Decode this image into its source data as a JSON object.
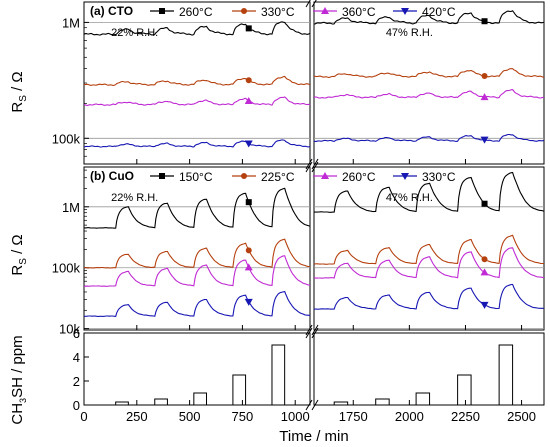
{
  "chart_data": [
    {
      "panel": "(a) CTO",
      "type": "line",
      "ylabel": "R_S / Ω",
      "yscale": "log",
      "ylim": [
        60000,
        1500000
      ],
      "yticks": [
        {
          "value": 100000,
          "label": "100k"
        },
        {
          "value": 1000000,
          "label": "1M"
        }
      ],
      "annotations": [
        {
          "text": "22% R.H.",
          "x": 240
        },
        {
          "text": "47% R.H.",
          "x": 2000
        }
      ],
      "series": [
        {
          "name": "260°C",
          "color": "#000000",
          "marker": "square",
          "base_dry": 790000,
          "base_wet": 985000,
          "response": 0.3,
          "noise": 0.018
        },
        {
          "name": "330°C",
          "color": "#b5410f",
          "marker": "circle",
          "base_dry": 290000,
          "base_wet": 340000,
          "response": 0.18,
          "noise": 0.015
        },
        {
          "name": "360°C",
          "color": "#c02ad4",
          "marker": "triangle-up",
          "base_dry": 195000,
          "base_wet": 225000,
          "response": 0.16,
          "noise": 0.015
        },
        {
          "name": "420°C",
          "color": "#1717b3",
          "marker": "triangle-down",
          "base_dry": 85000,
          "base_wet": 95000,
          "response": 0.14,
          "noise": 0.012
        }
      ]
    },
    {
      "panel": "(b) CuO",
      "type": "line",
      "ylabel": "R_S / Ω",
      "yscale": "log",
      "ylim": [
        9500,
        4500000
      ],
      "yticks": [
        {
          "value": 10000,
          "label": "10k"
        },
        {
          "value": 100000,
          "label": "100k"
        },
        {
          "value": 1000000,
          "label": "1M"
        }
      ],
      "annotations": [
        {
          "text": "22% R.H.",
          "x": 240
        },
        {
          "text": "47% R.H.",
          "x": 2000
        }
      ],
      "series": [
        {
          "name": "150°C",
          "color": "#000000",
          "marker": "square",
          "base_dry": 450000,
          "base_wet": 820000,
          "response": 3.6,
          "noise": 0.01
        },
        {
          "name": "225°C",
          "color": "#b5410f",
          "marker": "circle",
          "base_dry": 100000,
          "base_wet": 115000,
          "response": 2.0,
          "noise": 0.01
        },
        {
          "name": "260°C",
          "color": "#c02ad4",
          "marker": "triangle-up",
          "base_dry": 50000,
          "base_wet": 68000,
          "response": 2.2,
          "noise": 0.01
        },
        {
          "name": "330°C",
          "color": "#1717b3",
          "marker": "triangle-down",
          "base_dry": 16000,
          "base_wet": 21000,
          "response": 1.6,
          "noise": 0.01
        }
      ]
    },
    {
      "panel": "",
      "type": "bar",
      "ylabel": "CH3SH / ppm",
      "xlabel": "Time / min",
      "ylim": [
        0,
        6
      ],
      "yticks": [
        {
          "value": 0,
          "label": "0"
        },
        {
          "value": 2,
          "label": "2"
        },
        {
          "value": 4,
          "label": "4"
        },
        {
          "value": 6,
          "label": "6"
        }
      ],
      "pulse_width_min": 60,
      "pulses": [
        {
          "start": 150,
          "ppm": 0.25
        },
        {
          "start": 335,
          "ppm": 0.5
        },
        {
          "start": 520,
          "ppm": 1.0
        },
        {
          "start": 705,
          "ppm": 2.5
        },
        {
          "start": 890,
          "ppm": 5.0
        },
        {
          "start": 1665,
          "ppm": 0.25
        },
        {
          "start": 1850,
          "ppm": 0.5
        },
        {
          "start": 2030,
          "ppm": 1.0
        },
        {
          "start": 2215,
          "ppm": 2.5
        },
        {
          "start": 2400,
          "ppm": 5.0
        }
      ]
    }
  ],
  "x_axis": {
    "title": "Time / min",
    "segments": [
      {
        "start": 0,
        "end": 1070
      },
      {
        "start": 1575,
        "end": 2600
      }
    ],
    "ticks": [
      {
        "value": 0,
        "label": "0"
      },
      {
        "value": 250,
        "label": "250"
      },
      {
        "value": 500,
        "label": "500"
      },
      {
        "value": 750,
        "label": "750"
      },
      {
        "value": 1000,
        "label": "1000"
      },
      {
        "value": 1750,
        "label": "1750"
      },
      {
        "value": 2000,
        "label": "2000"
      },
      {
        "value": 2250,
        "label": "2250"
      },
      {
        "value": 2500,
        "label": "2500"
      }
    ]
  },
  "ylabels": {
    "rs_main": "R",
    "rs_sub": "S",
    "rs_unit": " / Ω",
    "ch3sh_pre": "CH",
    "ch3sh_sub": "3",
    "ch3sh_post": "SH / ppm"
  }
}
